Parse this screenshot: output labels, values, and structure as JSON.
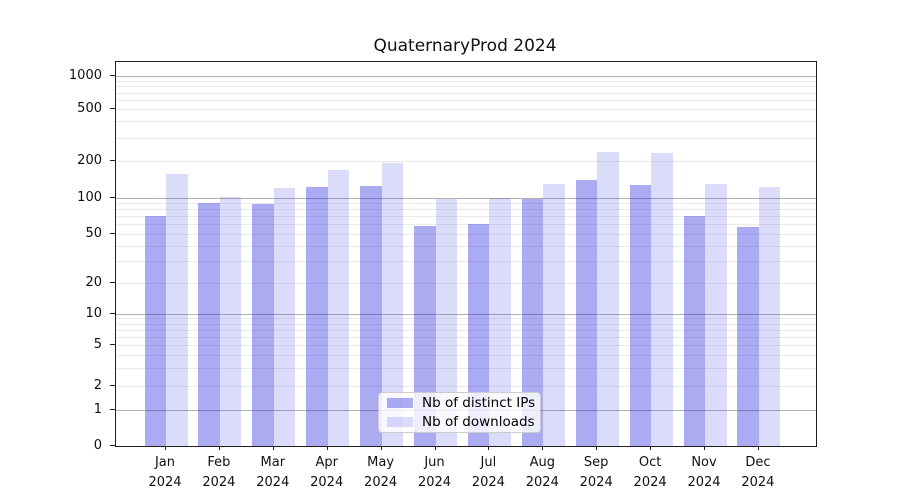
{
  "title": "QuaternaryProd 2024",
  "chart_data": {
    "type": "bar",
    "title": "QuaternaryProd 2024",
    "categories": [
      "Jan",
      "Feb",
      "Mar",
      "Apr",
      "May",
      "Jun",
      "Jul",
      "Aug",
      "Sep",
      "Oct",
      "Nov",
      "Dec"
    ],
    "category_year": "2024",
    "series": [
      {
        "name": "Nb of distinct IPs",
        "color_key": "ips",
        "values": [
          70,
          91,
          88,
          122,
          124,
          58,
          60,
          97,
          140,
          126,
          70,
          57
        ]
      },
      {
        "name": "Nb of downloads",
        "color_key": "downloads",
        "values": [
          157,
          102,
          121,
          168,
          193,
          97,
          100,
          130,
          235,
          232,
          130,
          122
        ]
      }
    ],
    "colors": {
      "ips": "rgba(34,34,221,0.38)",
      "downloads": "rgba(34,34,221,0.16)"
    },
    "y_ticks": [
      0,
      1,
      2,
      5,
      10,
      20,
      50,
      100,
      200,
      500,
      1000
    ],
    "yscale": "symlog",
    "ylim": [
      0,
      1300
    ],
    "grid": true,
    "legend_position": "lower center",
    "xlabel": "",
    "ylabel": ""
  }
}
